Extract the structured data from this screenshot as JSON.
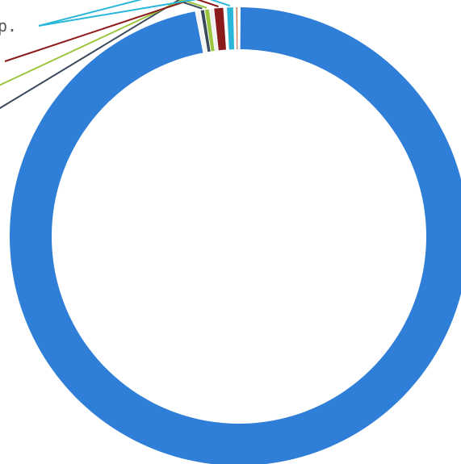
{
  "chart_data": {
    "type": "pie",
    "style": "donut",
    "title": "",
    "slices": [
      {
        "label": "",
        "value": 98.0,
        "color": "#2f7ed8"
      },
      {
        "label": "",
        "value": 0.35,
        "color": "#f5f5f5"
      },
      {
        "label": "",
        "value": 0.3,
        "color": "#3a4a5c"
      },
      {
        "label": "",
        "value": 0.35,
        "color": "#9bc53d"
      },
      {
        "label": "",
        "value": 0.3,
        "color": "#f0f0f0"
      },
      {
        "label": "",
        "value": 0.7,
        "color": "#8b1a1a"
      },
      {
        "label": "",
        "value": 0.2,
        "color": "#ffffff"
      },
      {
        "label": "p.",
        "value": 0.5,
        "color": "#29b6d8"
      },
      {
        "label": "",
        "value": 0.15,
        "color": "#ffffff"
      },
      {
        "label": "",
        "value": 0.15,
        "color": "#c07a50"
      }
    ],
    "legend": "none",
    "labels": "outside-with-leader-lines"
  }
}
